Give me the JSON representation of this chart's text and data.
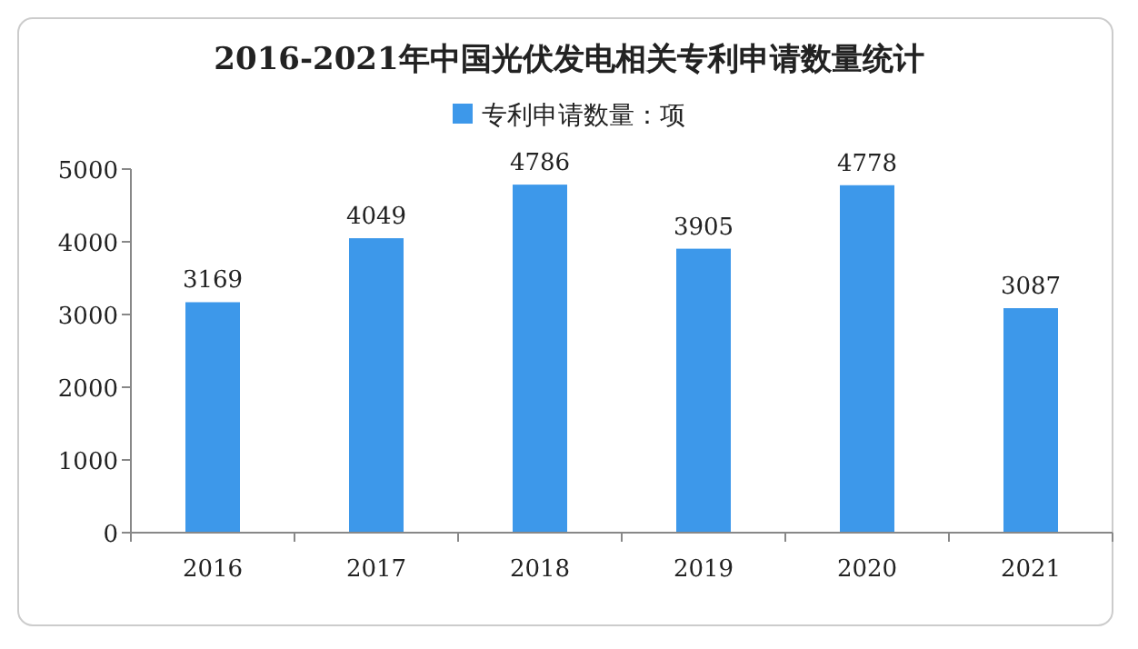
{
  "chart_data": {
    "type": "bar",
    "title": "2016-2021年中国光伏发电相关专利申请数量统计",
    "categories": [
      "2016",
      "2017",
      "2018",
      "2019",
      "2020",
      "2021"
    ],
    "series": [
      {
        "name": "专利申请数量：项",
        "color": "#3d98ea",
        "values": [
          3169,
          4049,
          4786,
          3905,
          4778,
          3087
        ]
      }
    ],
    "ylim": [
      0,
      5000
    ],
    "yticks": [
      0,
      1000,
      2000,
      3000,
      4000,
      5000
    ],
    "data_labels": true,
    "legend": "top",
    "grid": false
  }
}
